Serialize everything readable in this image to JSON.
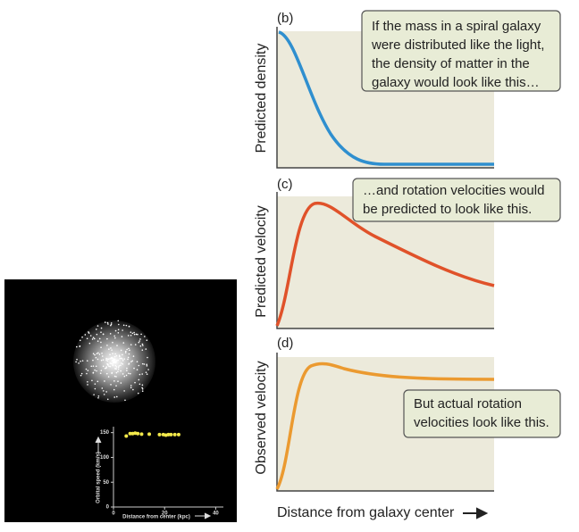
{
  "chart_data": {
    "type": "scatter",
    "y_label": "Orbital speed (km/s)",
    "x_label": "Distance from center (kpc)",
    "x": [
      5,
      6.5,
      7.5,
      8.5,
      9.5,
      11,
      14,
      18,
      19.5,
      20.5,
      21.5,
      22.5,
      24,
      25.5
    ],
    "series": [
      {
        "color": "#f2e84a",
        "values": [
          143,
          148,
          148,
          149,
          148,
          147,
          147,
          146,
          146,
          145,
          146,
          146,
          146,
          146
        ]
      }
    ],
    "xlim": [
      0,
      43
    ],
    "ylim": [
      0,
      162
    ],
    "xticks": [
      0,
      20,
      40
    ],
    "yticks": [
      0,
      50,
      100,
      150
    ]
  },
  "panels": [
    {
      "label": "(b)",
      "y_label": "Predicted density",
      "callout": [
        "If the mass in a spiral galaxy",
        "were distributed like the light,",
        "the density of matter in the",
        "galaxy would look like this…"
      ]
    },
    {
      "label": "(c)",
      "y_label": "Predicted velocity",
      "callout": [
        "…and rotation velocities would",
        "be predicted to look like this."
      ]
    },
    {
      "label": "(d)",
      "y_label": "Observed velocity",
      "callout": [
        "But actual rotation",
        "velocities look like this."
      ]
    }
  ],
  "x_label": "Distance from galaxy center"
}
